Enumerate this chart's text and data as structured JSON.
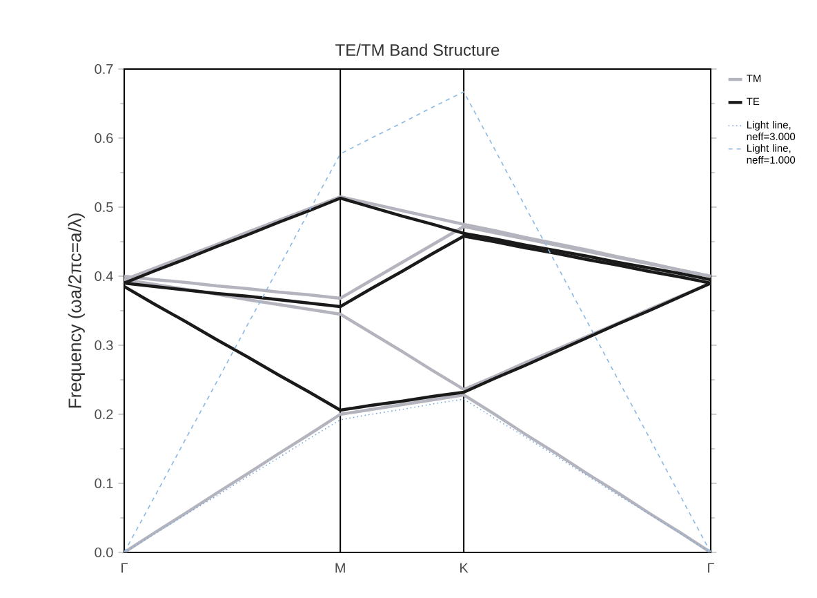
{
  "chart_data": {
    "type": "line",
    "title": "TE/TM Band Structure",
    "ylabel": "Frequency (ωa/2πc=a/λ)",
    "categories": [
      "Γ",
      null,
      null,
      null,
      null,
      null,
      null,
      "M",
      null,
      null,
      null,
      "K",
      null,
      null,
      null,
      null,
      null,
      null,
      null,
      "Γ"
    ],
    "ylim": [
      0,
      0.7
    ],
    "yticks": [
      {
        "value": 0,
        "label": "0.0"
      },
      0.1,
      0.2,
      0.3,
      0.4,
      0.5,
      0.6,
      0.7
    ],
    "ref_lines": [
      {
        "axis": "x",
        "value": "M",
        "color": "#000000"
      },
      {
        "axis": "x",
        "value": "K",
        "color": "#000000"
      }
    ],
    "legend": "right",
    "grid": false,
    "marker": "none",
    "series": [
      {
        "name": "TM",
        "color": "#b4b4be",
        "line_style": "solid",
        "values": [
          0,
          0.029,
          0.057,
          0.086,
          0.114,
          0.143,
          0.171,
          0.2,
          0.207,
          0.214,
          0.221,
          0.228,
          0.2,
          0.171,
          0.143,
          0.114,
          0.086,
          0.057,
          0.029,
          0
        ]
      },
      {
        "color": "#b4b4be",
        "line_style": "solid",
        "values": [
          0.395,
          0.388,
          0.381,
          0.374,
          0.366,
          0.359,
          0.352,
          0.345,
          0.318,
          0.291,
          0.263,
          0.236,
          0.255,
          0.275,
          0.294,
          0.313,
          0.332,
          0.352,
          0.371,
          0.39
        ]
      },
      {
        "color": "#b4b4be",
        "line_style": "solid",
        "values": [
          0.4,
          0.395,
          0.391,
          0.386,
          0.382,
          0.377,
          0.373,
          0.368,
          0.394,
          0.42,
          0.446,
          0.472,
          0.463,
          0.454,
          0.445,
          0.436,
          0.427,
          0.418,
          0.409,
          0.4
        ]
      },
      {
        "color": "#b4b4be",
        "line_style": "solid",
        "values": [
          0.395,
          0.412,
          0.429,
          0.446,
          0.464,
          0.481,
          0.498,
          0.515,
          0.505,
          0.495,
          0.485,
          0.475,
          0.466,
          0.456,
          0.447,
          0.438,
          0.428,
          0.419,
          0.409,
          0.4
        ]
      },
      {
        "name": "TE",
        "color": "#1a1a1a",
        "line_style": "solid",
        "values": [
          0.385,
          0.359,
          0.334,
          0.308,
          0.283,
          0.257,
          0.232,
          0.206,
          0.213,
          0.219,
          0.226,
          0.232,
          0.252,
          0.271,
          0.291,
          0.311,
          0.331,
          0.35,
          0.37,
          0.39
        ]
      },
      {
        "color": "#1a1a1a",
        "line_style": "solid",
        "values": [
          0.39,
          0.385,
          0.38,
          0.375,
          0.371,
          0.366,
          0.361,
          0.356,
          0.382,
          0.407,
          0.433,
          0.458,
          0.45,
          0.441,
          0.433,
          0.424,
          0.416,
          0.407,
          0.399,
          0.39
        ]
      },
      {
        "color": "#1a1a1a",
        "line_style": "solid",
        "values": [
          0.39,
          0.408,
          0.425,
          0.443,
          0.46,
          0.478,
          0.495,
          0.513,
          0.5,
          0.487,
          0.475,
          0.462,
          0.454,
          0.445,
          0.437,
          0.429,
          0.42,
          0.412,
          0.404,
          0.395
        ]
      },
      {
        "name": "Light line, neff=3.000",
        "color": "#7aa8dc",
        "line_style": "dotted",
        "values": [
          0,
          0.027,
          0.055,
          0.082,
          0.11,
          0.137,
          0.165,
          0.192,
          0.2,
          0.207,
          0.215,
          0.222,
          0.194,
          0.167,
          0.139,
          0.111,
          0.083,
          0.056,
          0.028,
          0
        ]
      },
      {
        "name": "Light line, neff=1.000",
        "color": "#8ab8e6",
        "line_style": "dashed",
        "values": [
          0,
          0.082,
          0.165,
          0.247,
          0.33,
          0.412,
          0.495,
          0.577,
          0.6,
          0.622,
          0.645,
          0.667,
          0.584,
          0.5,
          0.417,
          0.334,
          0.25,
          0.167,
          0.083,
          0
        ]
      }
    ]
  }
}
